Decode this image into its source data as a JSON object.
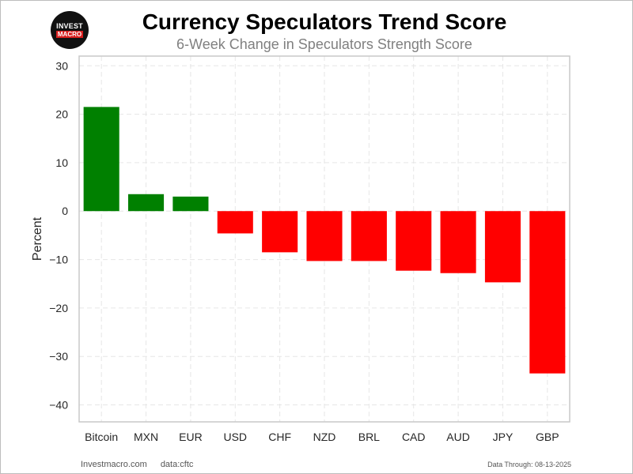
{
  "header": {
    "logo_top": "INVEST",
    "logo_bottom": "MACRO",
    "title": "Currency Speculators Trend Score",
    "subtitle": "6-Week Change in Speculators Strength Score"
  },
  "footer": {
    "site": "Investmacro.com",
    "source": "data:cftc",
    "data_through": "Data Through: 08-13-2025"
  },
  "colors": {
    "positive": "#008000",
    "negative": "#ff0000",
    "grid": "#e6e6e6",
    "axis_border": "#c8c8c8"
  },
  "chart_data": {
    "type": "bar",
    "title": "Currency Speculators Trend Score",
    "subtitle": "6-Week Change in Speculators Strength Score",
    "xlabel": "",
    "ylabel": "Percent",
    "categories": [
      "Bitcoin",
      "MXN",
      "EUR",
      "USD",
      "CHF",
      "NZD",
      "BRL",
      "CAD",
      "AUD",
      "JPY",
      "GBP"
    ],
    "values": [
      21.5,
      3.5,
      3.0,
      -4.6,
      -8.5,
      -10.3,
      -10.3,
      -12.3,
      -12.8,
      -14.7,
      -33.5
    ],
    "ylim": [
      -43.5,
      32
    ],
    "yticks": [
      30,
      20,
      10,
      0,
      -10,
      -20,
      -30,
      -40
    ],
    "ytick_labels": [
      "30",
      "20",
      "10",
      "0",
      "−10",
      "−20",
      "−30",
      "−40"
    ],
    "grid": true,
    "grid_style": "dashed"
  }
}
